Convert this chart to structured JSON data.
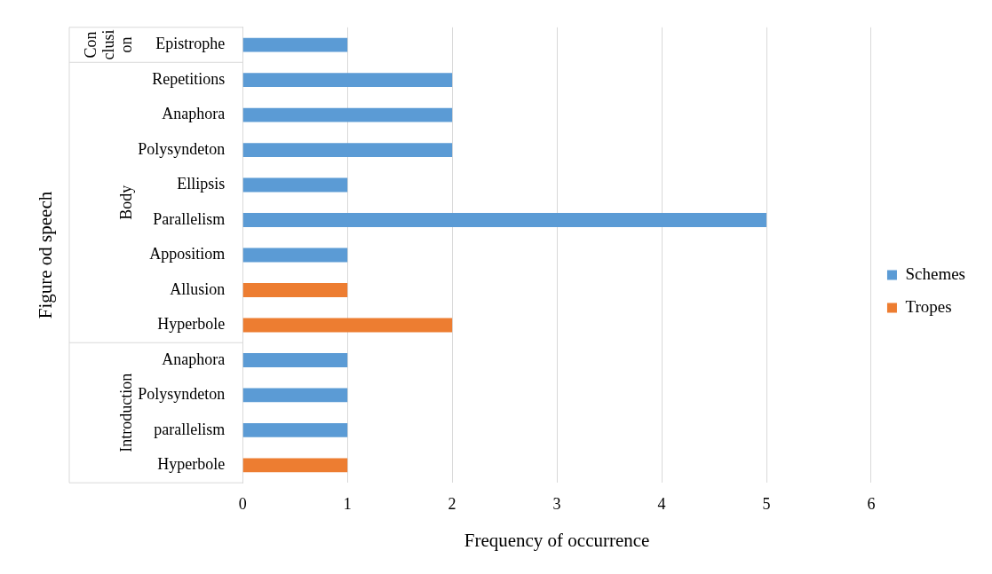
{
  "chart_data": {
    "type": "bar",
    "orientation": "horizontal",
    "stacked": true,
    "xlabel": "Frequency of occurrence",
    "ylabel": "Figure od speech",
    "categories": [
      "Epistrophe",
      "Repetitions",
      "Anaphora",
      "Polysyndeton",
      "Ellipsis",
      "Parallelism",
      "Appositiom",
      "Allusion",
      "Hyperbole",
      "Anaphora",
      "Polysyndeton",
      "parallelism",
      "Hyperbole"
    ],
    "series": [
      {
        "name": "Schemes",
        "color": "#5b9bd5",
        "values": [
          1,
          2,
          2,
          2,
          1,
          5,
          1,
          null,
          null,
          1,
          1,
          1,
          null
        ]
      },
      {
        "name": "Tropes",
        "color": "#ed7d31",
        "values": [
          null,
          null,
          null,
          null,
          null,
          null,
          null,
          1,
          2,
          null,
          null,
          null,
          1
        ]
      }
    ],
    "xlim": [
      0,
      6
    ],
    "xticks": [
      0,
      1,
      2,
      3,
      4,
      5,
      6
    ],
    "grid": "x",
    "legend": "right",
    "annotations": [
      "Conclusion",
      "Body",
      "Introduction"
    ]
  }
}
